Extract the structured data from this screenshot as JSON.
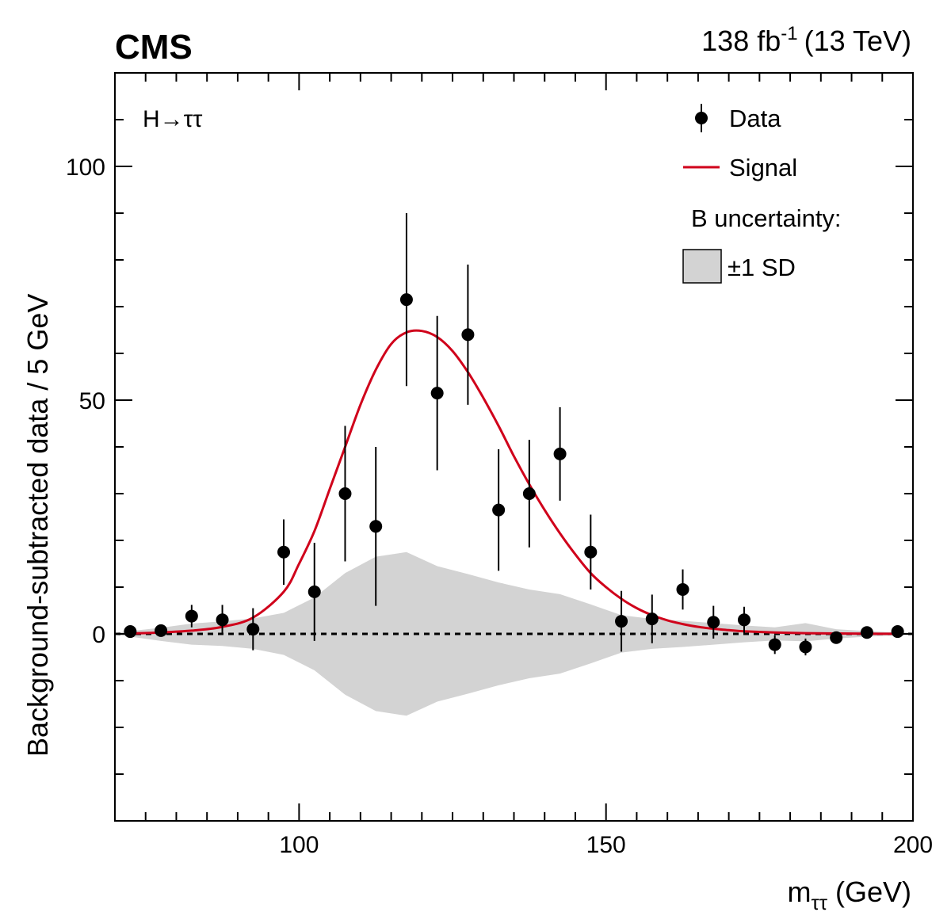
{
  "header": {
    "experiment": "CMS",
    "lumi_value": "138 fb",
    "lumi_exp": "-1",
    "energy": "(13 TeV)"
  },
  "process_label": "H→ττ",
  "legend": {
    "data": "Data",
    "signal": "Signal",
    "band_title": "B uncertainty:",
    "band": "±1 SD"
  },
  "colors": {
    "signal": "#d0021b",
    "band": "#d3d3d3",
    "data": "#000000"
  },
  "chart_data": {
    "type": "scatter",
    "xlabel_main": "m",
    "xlabel_sub": "ττ",
    "xlabel_unit": "(GeV)",
    "ylabel": "Background-subtracted data / 5 GeV",
    "xlim": [
      70,
      200
    ],
    "ylim": [
      -40,
      120
    ],
    "x_ticks": [
      100,
      150,
      200
    ],
    "y_ticks": [
      0,
      50,
      100
    ],
    "reference_line": 0,
    "series": [
      {
        "name": "Data",
        "kind": "points_with_errors",
        "points": [
          {
            "x": 72.5,
            "y": 0.5,
            "err": 0.8
          },
          {
            "x": 77.5,
            "y": 0.7,
            "err": 1.0
          },
          {
            "x": 82.5,
            "y": 3.8,
            "err": 2.4
          },
          {
            "x": 87.5,
            "y": 3.0,
            "err": 3.2
          },
          {
            "x": 92.5,
            "y": 1.0,
            "err": 4.5
          },
          {
            "x": 97.5,
            "y": 17.5,
            "err": 7.0
          },
          {
            "x": 102.5,
            "y": 9.0,
            "err": 10.5
          },
          {
            "x": 107.5,
            "y": 30.0,
            "err": 14.5
          },
          {
            "x": 112.5,
            "y": 23.0,
            "err": 17.0
          },
          {
            "x": 117.5,
            "y": 71.5,
            "err": 18.5
          },
          {
            "x": 122.5,
            "y": 51.5,
            "err": 16.5
          },
          {
            "x": 127.5,
            "y": 64.0,
            "err": 15.0
          },
          {
            "x": 132.5,
            "y": 26.5,
            "err": 13.0
          },
          {
            "x": 137.5,
            "y": 30.0,
            "err": 11.5
          },
          {
            "x": 142.5,
            "y": 38.5,
            "err": 10.0
          },
          {
            "x": 147.5,
            "y": 17.5,
            "err": 8.0
          },
          {
            "x": 152.5,
            "y": 2.7,
            "err": 6.5
          },
          {
            "x": 157.5,
            "y": 3.2,
            "err": 5.2
          },
          {
            "x": 162.5,
            "y": 9.5,
            "err": 4.3
          },
          {
            "x": 167.5,
            "y": 2.5,
            "err": 3.5
          },
          {
            "x": 172.5,
            "y": 3.0,
            "err": 2.8
          },
          {
            "x": 177.5,
            "y": -2.3,
            "err": 2.0
          },
          {
            "x": 182.5,
            "y": -2.8,
            "err": 1.8
          },
          {
            "x": 187.5,
            "y": -0.8,
            "err": 1.2
          },
          {
            "x": 192.5,
            "y": 0.3,
            "err": 0.6
          },
          {
            "x": 197.5,
            "y": 0.5,
            "err": 0.5
          }
        ]
      },
      {
        "name": "Signal",
        "kind": "curve",
        "x": [
          72.5,
          77.5,
          82.5,
          87.5,
          92.5,
          97.5,
          100,
          102.5,
          105,
          107.5,
          110,
          112.5,
          115,
          117.5,
          120,
          122.5,
          125,
          127.5,
          130,
          132.5,
          135,
          137.5,
          140,
          142.5,
          145,
          147.5,
          150,
          152.5,
          155,
          157.5,
          160,
          162.5,
          165,
          167.5,
          170,
          172.5,
          177.5,
          182.5,
          187.5,
          192.5,
          197.5
        ],
        "y": [
          0.1,
          0.3,
          0.7,
          1.5,
          3.5,
          9.0,
          15.0,
          22.0,
          31.0,
          40.0,
          49.0,
          56.5,
          62.0,
          64.5,
          64.8,
          63.5,
          60.5,
          56.0,
          50.5,
          44.5,
          38.0,
          32.0,
          26.5,
          21.5,
          17.0,
          13.0,
          10.0,
          7.5,
          5.5,
          4.0,
          2.9,
          2.1,
          1.5,
          1.1,
          0.8,
          0.55,
          0.3,
          0.15,
          0.08,
          0.04,
          0.02
        ]
      },
      {
        "name": "±1 SD",
        "kind": "band",
        "x": [
          70.5,
          72.5,
          77.5,
          82.5,
          87.5,
          92.5,
          97.5,
          102.5,
          107.5,
          112.5,
          117.5,
          122.5,
          127.5,
          132.5,
          137.5,
          142.5,
          147.5,
          152.5,
          157.5,
          162.5,
          167.5,
          172.5,
          177.5,
          182.5,
          187.5,
          192.5,
          197.5,
          199.5
        ],
        "upper": [
          0.3,
          0.6,
          1.3,
          2.2,
          2.7,
          3.3,
          4.5,
          7.8,
          13.0,
          16.5,
          17.5,
          14.5,
          12.8,
          11.0,
          9.5,
          8.5,
          6.3,
          4.0,
          3.2,
          2.8,
          2.3,
          1.8,
          1.4,
          2.3,
          1.0,
          0.6,
          0.3,
          0.3
        ],
        "lower": [
          -0.3,
          -0.6,
          -1.5,
          -2.3,
          -2.6,
          -3.2,
          -4.5,
          -7.8,
          -13.0,
          -16.5,
          -17.5,
          -14.5,
          -12.8,
          -11.0,
          -9.5,
          -8.5,
          -6.3,
          -4.0,
          -3.2,
          -2.8,
          -2.3,
          -1.8,
          -1.4,
          -1.6,
          -1.0,
          -0.6,
          -0.3,
          -0.3
        ]
      }
    ]
  }
}
